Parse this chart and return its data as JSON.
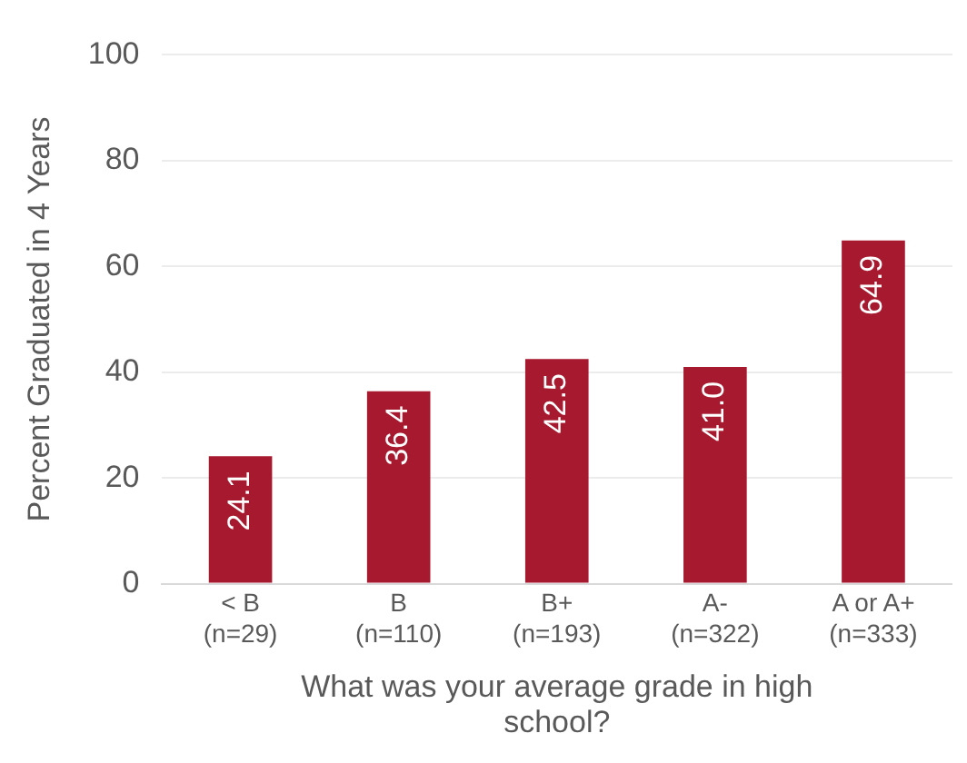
{
  "chart_data": {
    "type": "bar",
    "categories": [
      "< B\n(n=29)",
      "B\n(n=110)",
      "B+\n(n=193)",
      "A-\n(n=322)",
      "A or A+\n(n=333)"
    ],
    "values": [
      24.1,
      36.4,
      42.5,
      41.0,
      64.9
    ],
    "value_labels": [
      "24.1",
      "36.4",
      "42.5",
      "41.0",
      "64.9"
    ],
    "color": "#a6192e",
    "xlabel": "What was your average grade in high school?",
    "ylabel": "Percent Graduated in 4 Years",
    "ylim": [
      0,
      100
    ],
    "yticks": [
      0,
      20,
      40,
      60,
      80,
      100
    ],
    "grid": "y",
    "legend": false
  }
}
